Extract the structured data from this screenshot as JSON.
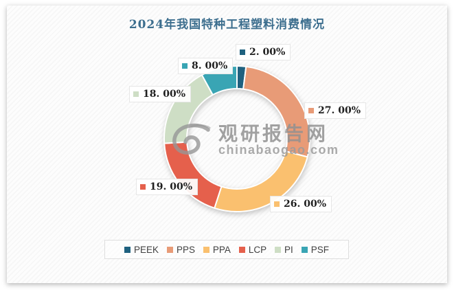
{
  "title": "2024年我国特种工程塑料消费情况",
  "watermark": {
    "logo_icon": "swirl-eye-logo",
    "site_name": "观研报告网",
    "site_domain": "chinabaogao.com"
  },
  "chart_data": {
    "type": "pie",
    "subtype": "donut",
    "title": "2024年我国特种工程塑料消费情况",
    "categories": [
      "PEEK",
      "PPS",
      "PPA",
      "LCP",
      "PI",
      "PSF"
    ],
    "values": [
      2,
      27,
      26,
      19,
      18,
      8
    ],
    "unit": "%",
    "labels": [
      "2. 00%",
      "27. 00%",
      "26. 00%",
      "19. 00%",
      "18. 00%",
      "8. 00%"
    ],
    "colors": [
      "#1F617F",
      "#E89B77",
      "#FAC06F",
      "#E5604C",
      "#CEDEC5",
      "#39A5B4"
    ],
    "start_angle_deg": 0,
    "direction": "clockwise",
    "donut_hole_ratio": 0.69,
    "legend_position": "bottom",
    "title_color": "#3C6E8E"
  }
}
